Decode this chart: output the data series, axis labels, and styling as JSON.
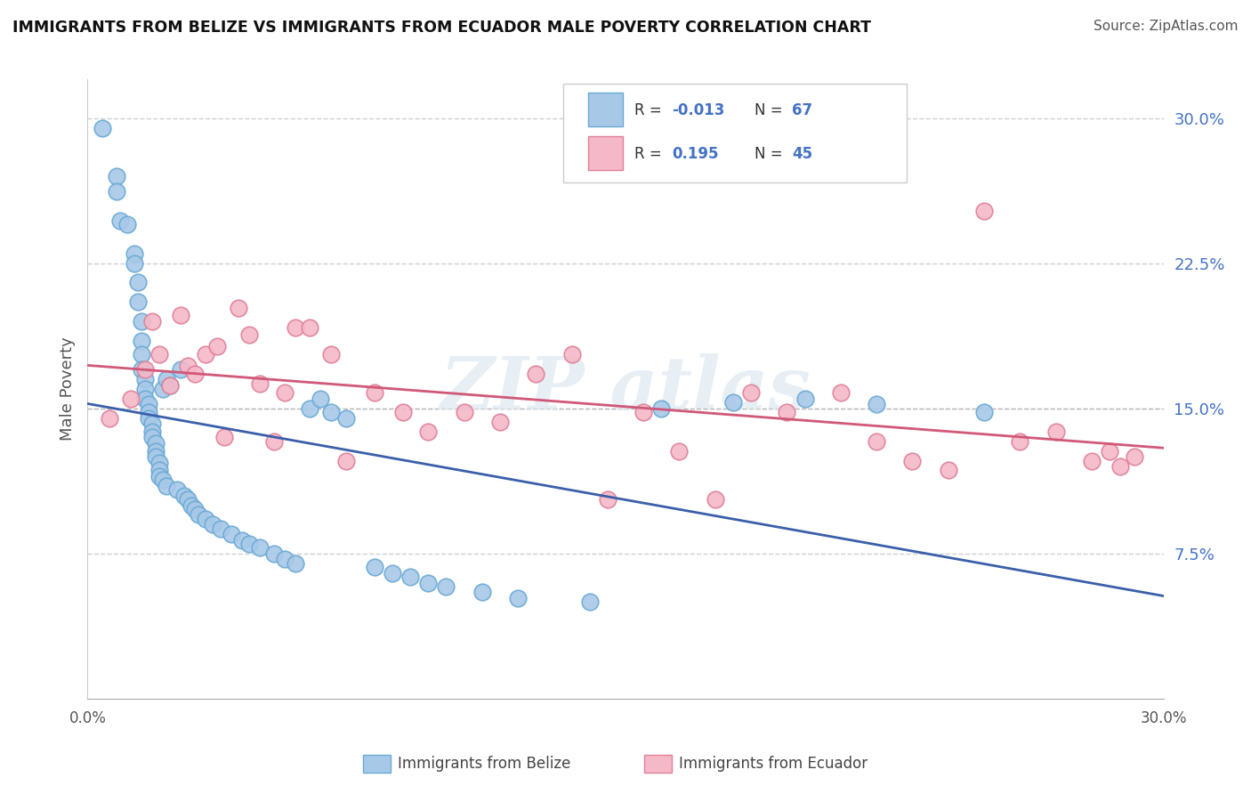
{
  "title": "IMMIGRANTS FROM BELIZE VS IMMIGRANTS FROM ECUADOR MALE POVERTY CORRELATION CHART",
  "source": "Source: ZipAtlas.com",
  "ylabel": "Male Poverty",
  "xlim": [
    0.0,
    0.3
  ],
  "ylim": [
    0.0,
    0.32
  ],
  "yticks": [
    0.075,
    0.15,
    0.225,
    0.3
  ],
  "ytick_labels": [
    "7.5%",
    "15.0%",
    "22.5%",
    "30.0%"
  ],
  "belize_color": "#a8c8e8",
  "belize_edge_color": "#6aaad4",
  "ecuador_color": "#f4b8c8",
  "ecuador_edge_color": "#e08098",
  "belize_line_color": "#3a5faa",
  "ecuador_line_color": "#d05878",
  "legend_text_color": "#4472c4",
  "r_belize_str": "-0.013",
  "n_belize_str": "67",
  "r_ecuador_str": "0.195",
  "n_ecuador_str": "45",
  "belize_x": [
    0.004,
    0.008,
    0.008,
    0.009,
    0.011,
    0.013,
    0.013,
    0.014,
    0.014,
    0.015,
    0.015,
    0.015,
    0.015,
    0.016,
    0.016,
    0.016,
    0.017,
    0.017,
    0.017,
    0.018,
    0.018,
    0.018,
    0.019,
    0.019,
    0.019,
    0.02,
    0.02,
    0.02,
    0.021,
    0.021,
    0.022,
    0.022,
    0.023,
    0.025,
    0.026,
    0.027,
    0.028,
    0.029,
    0.03,
    0.031,
    0.033,
    0.035,
    0.037,
    0.04,
    0.043,
    0.045,
    0.048,
    0.052,
    0.055,
    0.058,
    0.062,
    0.065,
    0.068,
    0.072,
    0.08,
    0.085,
    0.09,
    0.095,
    0.1,
    0.11,
    0.12,
    0.14,
    0.16,
    0.18,
    0.2,
    0.22,
    0.25
  ],
  "belize_y": [
    0.295,
    0.27,
    0.262,
    0.247,
    0.245,
    0.23,
    0.225,
    0.215,
    0.205,
    0.195,
    0.185,
    0.178,
    0.17,
    0.165,
    0.16,
    0.155,
    0.152,
    0.148,
    0.145,
    0.142,
    0.138,
    0.135,
    0.132,
    0.128,
    0.125,
    0.122,
    0.118,
    0.115,
    0.16,
    0.113,
    0.11,
    0.165,
    0.162,
    0.108,
    0.17,
    0.105,
    0.103,
    0.1,
    0.098,
    0.095,
    0.093,
    0.09,
    0.088,
    0.085,
    0.082,
    0.08,
    0.078,
    0.075,
    0.072,
    0.07,
    0.15,
    0.155,
    0.148,
    0.145,
    0.068,
    0.065,
    0.063,
    0.06,
    0.058,
    0.055,
    0.052,
    0.05,
    0.15,
    0.153,
    0.155,
    0.152,
    0.148
  ],
  "ecuador_x": [
    0.006,
    0.012,
    0.016,
    0.018,
    0.02,
    0.023,
    0.026,
    0.028,
    0.03,
    0.033,
    0.036,
    0.038,
    0.042,
    0.045,
    0.048,
    0.052,
    0.055,
    0.058,
    0.062,
    0.068,
    0.072,
    0.08,
    0.088,
    0.095,
    0.105,
    0.115,
    0.125,
    0.135,
    0.145,
    0.155,
    0.165,
    0.175,
    0.185,
    0.195,
    0.21,
    0.22,
    0.23,
    0.24,
    0.25,
    0.26,
    0.27,
    0.28,
    0.285,
    0.288,
    0.292
  ],
  "ecuador_y": [
    0.145,
    0.155,
    0.17,
    0.195,
    0.178,
    0.162,
    0.198,
    0.172,
    0.168,
    0.178,
    0.182,
    0.135,
    0.202,
    0.188,
    0.163,
    0.133,
    0.158,
    0.192,
    0.192,
    0.178,
    0.123,
    0.158,
    0.148,
    0.138,
    0.148,
    0.143,
    0.168,
    0.178,
    0.103,
    0.148,
    0.128,
    0.103,
    0.158,
    0.148,
    0.158,
    0.133,
    0.123,
    0.118,
    0.252,
    0.133,
    0.138,
    0.123,
    0.128,
    0.12,
    0.125
  ]
}
